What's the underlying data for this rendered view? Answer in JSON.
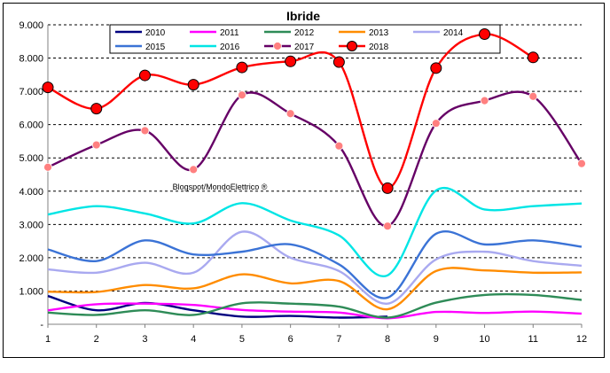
{
  "chart_data": {
    "type": "line",
    "title": "Ibride",
    "annotation": "Blogspot/MondoElettrico ®",
    "x": [
      1,
      2,
      3,
      4,
      5,
      6,
      7,
      8,
      9,
      10,
      11,
      12
    ],
    "ylim": [
      0,
      9000
    ],
    "yticks": [
      "-",
      "1.000",
      "2.000",
      "3.000",
      "4.000",
      "5.000",
      "6.000",
      "7.000",
      "8.000",
      "9.000"
    ],
    "xticks": [
      "1",
      "2",
      "3",
      "4",
      "5",
      "6",
      "7",
      "8",
      "9",
      "10",
      "11",
      "12"
    ],
    "grid": "horizontal dashed",
    "legend": "top",
    "series": [
      {
        "name": "2010",
        "color": "#000080",
        "marker": "none",
        "values": [
          850,
          420,
          640,
          420,
          230,
          250,
          200,
          230,
          null,
          null,
          null,
          null
        ]
      },
      {
        "name": "2011",
        "color": "#ff00ff",
        "marker": "none",
        "values": [
          420,
          600,
          620,
          580,
          430,
          380,
          350,
          180,
          370,
          340,
          380,
          320
        ]
      },
      {
        "name": "2012",
        "color": "#2e8b57",
        "marker": "none",
        "values": [
          350,
          280,
          420,
          280,
          630,
          620,
          530,
          200,
          650,
          880,
          880,
          730
        ]
      },
      {
        "name": "2013",
        "color": "#ff8c00",
        "marker": "none",
        "values": [
          980,
          970,
          1180,
          1080,
          1500,
          1230,
          1300,
          450,
          1600,
          1620,
          1550,
          1560
        ]
      },
      {
        "name": "2014",
        "color": "#a9a9f0",
        "marker": "none",
        "values": [
          1650,
          1550,
          1850,
          1550,
          2780,
          2000,
          1600,
          620,
          1950,
          2180,
          1900,
          1760
        ]
      },
      {
        "name": "2015",
        "color": "#3b73d6",
        "marker": "none",
        "values": [
          2250,
          1900,
          2520,
          2100,
          2180,
          2400,
          1800,
          800,
          2720,
          2400,
          2520,
          2330
        ]
      },
      {
        "name": "2016",
        "color": "#00e5e5",
        "marker": "none",
        "values": [
          3300,
          3550,
          3330,
          3030,
          3640,
          3120,
          2670,
          1470,
          4020,
          3450,
          3550,
          3630
        ]
      },
      {
        "name": "2017",
        "color": "#660066",
        "marker": "circle-pink",
        "values": [
          4720,
          5390,
          5820,
          4650,
          6890,
          6330,
          5360,
          2950,
          6040,
          6720,
          6850,
          4830
        ]
      },
      {
        "name": "2018",
        "color": "#ff0000",
        "marker": "circle-red",
        "values": [
          7120,
          6480,
          7480,
          7200,
          7720,
          7900,
          7880,
          4090,
          7700,
          8720,
          8020,
          null
        ]
      }
    ]
  }
}
